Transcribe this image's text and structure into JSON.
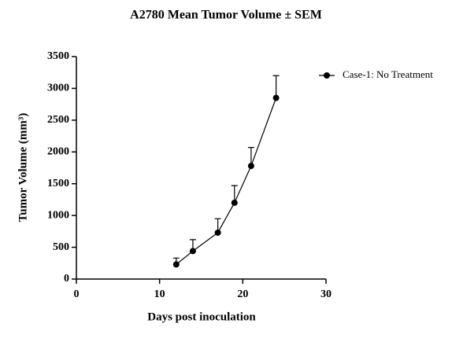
{
  "chart_data": {
    "type": "line",
    "title": "A2780 Mean Tumor Volume ± SEM",
    "x_label": "Days post inoculation",
    "y_label": "Tumor Volume (mm³)",
    "x": [
      12,
      14,
      17,
      19,
      21,
      24
    ],
    "series": [
      {
        "name": "Case-1: No Treatment",
        "color": "#000000",
        "values": [
          230,
          440,
          730,
          1200,
          1780,
          2850
        ],
        "errors": [
          100,
          180,
          220,
          270,
          290,
          350
        ]
      }
    ],
    "xlim": [
      0,
      30
    ],
    "xticks": [
      0,
      10,
      20,
      30
    ],
    "ylim": [
      0,
      3500
    ],
    "yticks": [
      0,
      500,
      1000,
      1500,
      2000,
      2500,
      3000,
      3500
    ],
    "grid": false,
    "legend": "top-right"
  }
}
